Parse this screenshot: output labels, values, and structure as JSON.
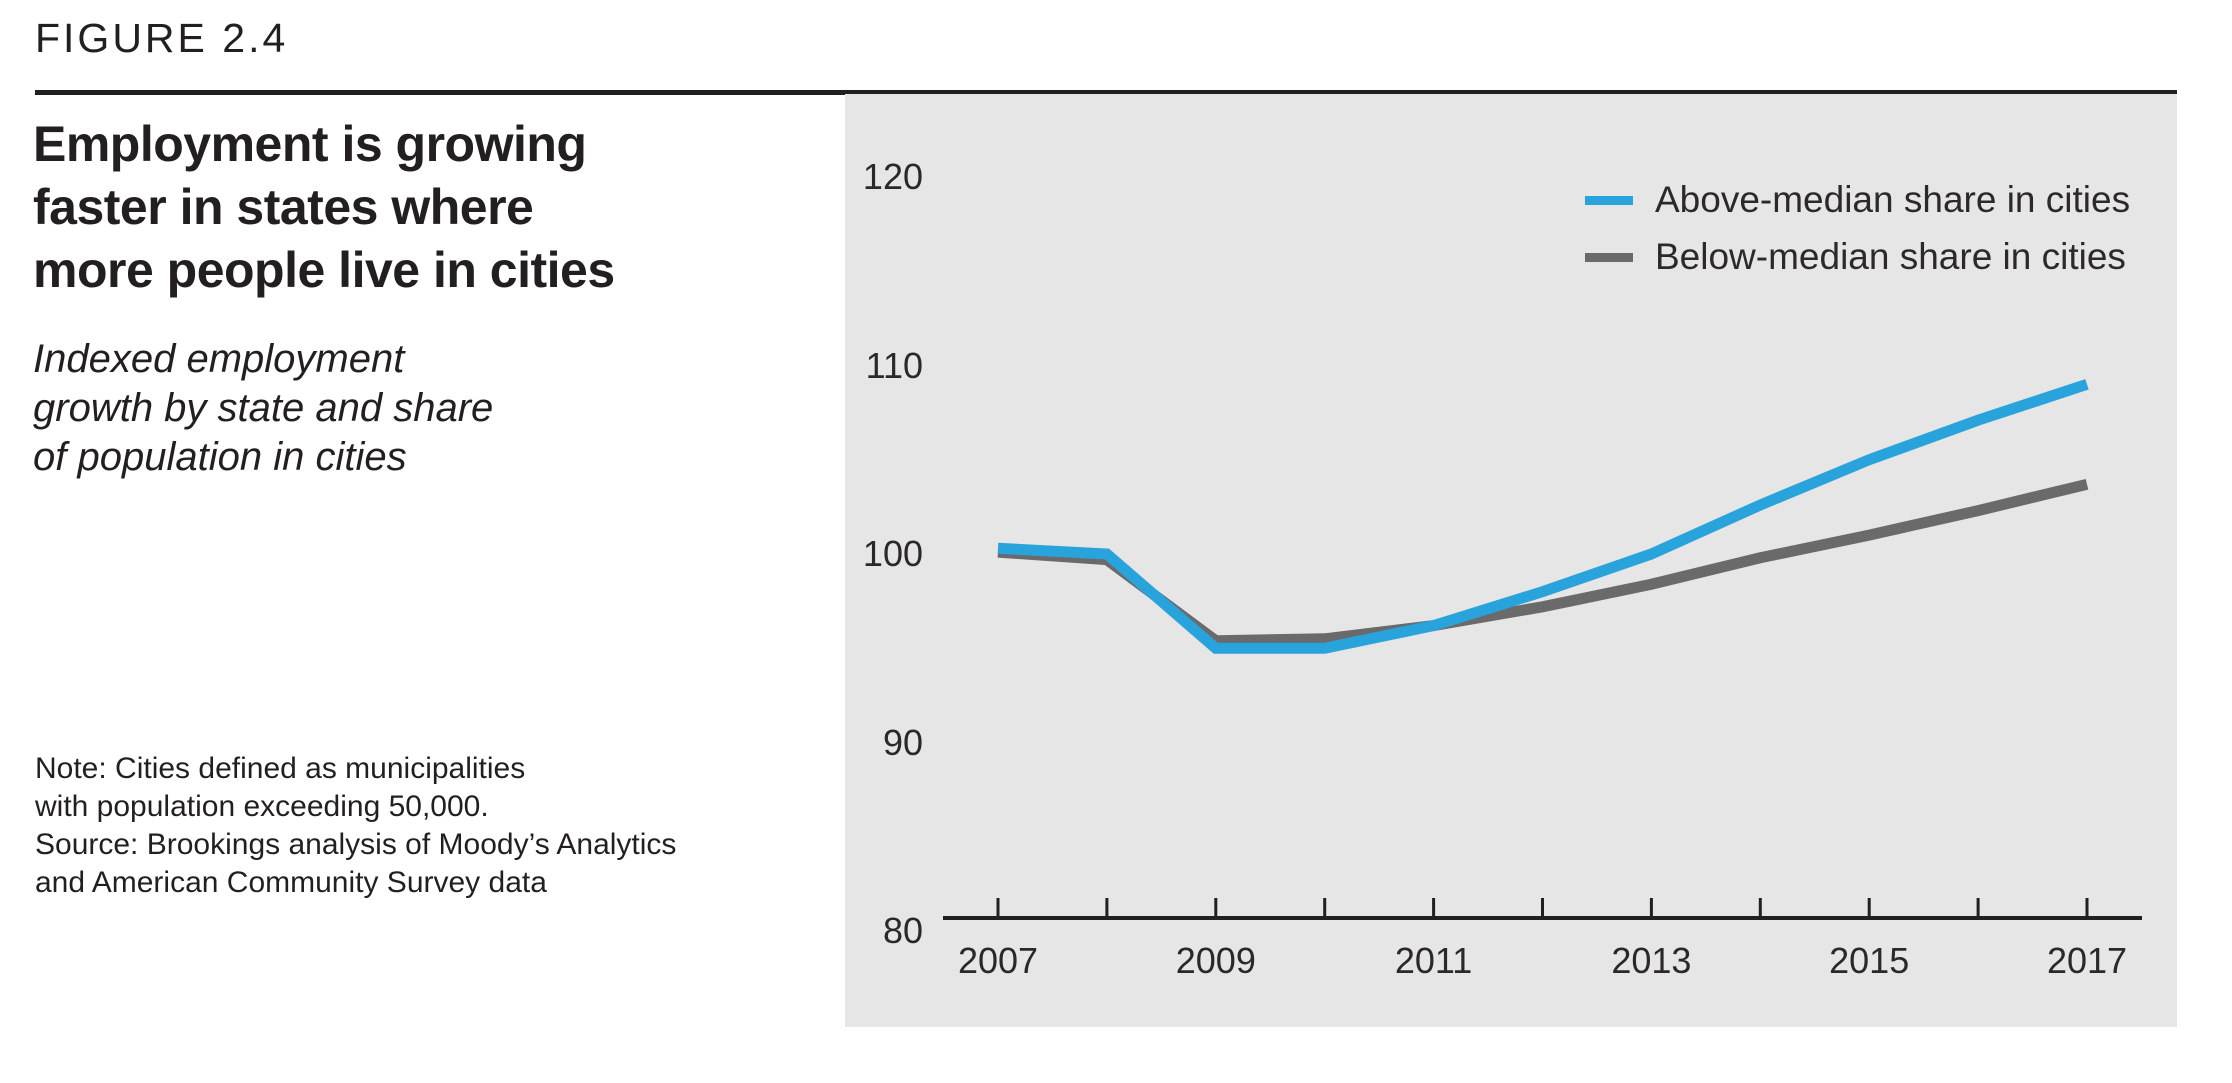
{
  "figure_label": "FIGURE 2.4",
  "title": {
    "lines": [
      "Employment is growing",
      "faster in states where",
      "more people live in cities"
    ]
  },
  "subtitle": {
    "lines": [
      "Indexed employment",
      "growth by state and share",
      "of population in cities"
    ]
  },
  "note": {
    "lines": [
      "Note: Cities defined as municipalities",
      "with population exceeding 50,000.",
      "Source: Brookings analysis of Moody’s Analytics",
      "and American Community Survey data"
    ]
  },
  "legend": [
    {
      "label": "Above-median share in cities",
      "color": "#29A3DC"
    },
    {
      "label": "Below-median share in cities",
      "color": "#6A6A6A"
    }
  ],
  "colors": {
    "panel_bg": "#E6E6E6",
    "text": "#231F20",
    "axis": "#231F20",
    "above_line": "#29A3DC",
    "below_line": "#6A6A6A"
  },
  "chart_data": {
    "type": "line",
    "title": "Employment is growing faster in states where more people live in cities",
    "subtitle": "Indexed employment growth by state and share of population in cities",
    "x": [
      2007,
      2008,
      2009,
      2010,
      2011,
      2012,
      2013,
      2014,
      2015,
      2016,
      2017
    ],
    "series": [
      {
        "name": "Above-median share in cities",
        "color": "#29A3DC",
        "values": [
          100.3,
          100.0,
          95.0,
          95.0,
          96.2,
          98.0,
          100.0,
          102.6,
          105.0,
          107.1,
          109.0
        ]
      },
      {
        "name": "Below-median share in cities",
        "color": "#6A6A6A",
        "values": [
          100.1,
          99.7,
          95.4,
          95.5,
          96.2,
          97.2,
          98.4,
          99.8,
          101.0,
          102.3,
          103.7
        ]
      }
    ],
    "y_ticks": [
      120,
      110,
      100,
      90,
      80
    ],
    "x_tick_years": [
      2007,
      2008,
      2009,
      2010,
      2011,
      2012,
      2013,
      2014,
      2015,
      2016,
      2017
    ],
    "x_label_years": [
      2007,
      2009,
      2011,
      2013,
      2015,
      2017
    ],
    "ylim": [
      80,
      120
    ],
    "xlabel": "",
    "ylabel": "",
    "grid": false,
    "legend_position": "top-right"
  }
}
